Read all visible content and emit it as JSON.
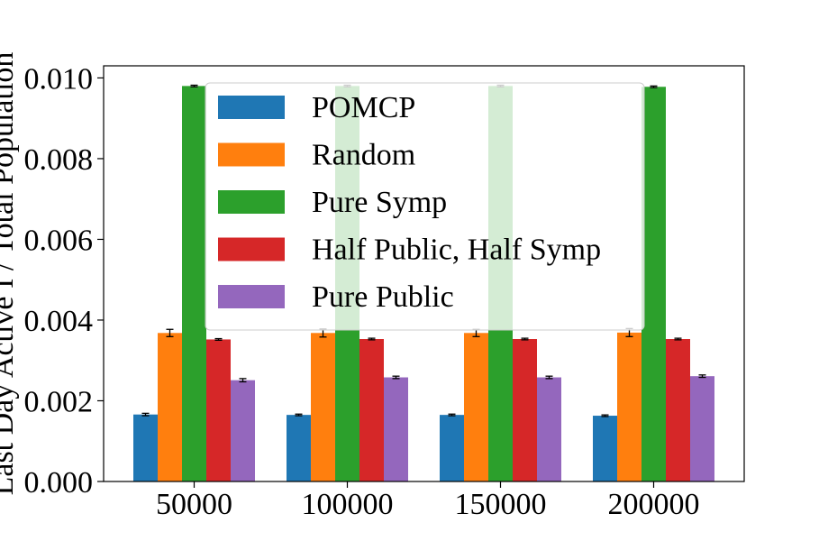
{
  "chart_data": {
    "type": "bar",
    "categories": [
      "50000",
      "100000",
      "150000",
      "200000"
    ],
    "ylabel": "Last Day Active I / Total Population",
    "ylim": [
      0,
      0.0103
    ],
    "yticks": [
      "0.000",
      "0.002",
      "0.004",
      "0.006",
      "0.008",
      "0.010"
    ],
    "grid": false,
    "legend_position": "top-center",
    "series": [
      {
        "name": "POMCP",
        "color": "#1f77b4",
        "values": [
          0.00166,
          0.00165,
          0.00165,
          0.00163
        ],
        "errors": [
          3e-05,
          2e-05,
          2e-05,
          2e-05
        ]
      },
      {
        "name": "Random",
        "color": "#ff7f0e",
        "values": [
          0.00368,
          0.00368,
          0.00368,
          0.00369
        ],
        "errors": [
          9e-05,
          0.0001,
          9e-05,
          0.0001
        ]
      },
      {
        "name": "Pure Symp",
        "color": "#2ca02c",
        "values": [
          0.0098,
          0.0098,
          0.0098,
          0.00978
        ],
        "errors": [
          2e-05,
          2e-05,
          2e-05,
          2e-05
        ]
      },
      {
        "name": "Half Public, Half Symp",
        "color": "#d62728",
        "values": [
          0.00352,
          0.00353,
          0.00353,
          0.00353
        ],
        "errors": [
          2e-05,
          2e-05,
          2e-05,
          2e-05
        ]
      },
      {
        "name": "Pure Public",
        "color": "#9467bd",
        "values": [
          0.00251,
          0.00258,
          0.00258,
          0.00261
        ],
        "errors": [
          4e-05,
          3e-05,
          3e-05,
          3e-05
        ]
      }
    ]
  }
}
